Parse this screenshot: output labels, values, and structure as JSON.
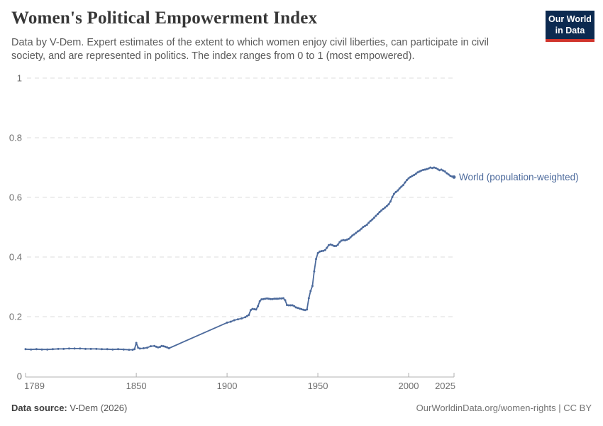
{
  "header": {
    "title": "Women's Political Empowerment Index",
    "subtitle": "Data by V-Dem. Expert estimates of the extent to which women enjoy civil liberties, can participate in civil society, and are represented in politics. The index ranges from 0 to 1 (most empowered).",
    "logo": {
      "line1": "Our World",
      "line2": "in Data",
      "bg_color": "#0c2a50",
      "accent_color": "#d0342c"
    }
  },
  "chart_data": {
    "type": "line",
    "title": "Women's Political Empowerment Index",
    "xlabel": "",
    "ylabel": "",
    "xlim": [
      1789,
      2025
    ],
    "ylim": [
      0,
      1
    ],
    "x_ticks": [
      1789,
      1850,
      1900,
      1950,
      2000,
      2025
    ],
    "y_ticks": [
      0,
      0.2,
      0.4,
      0.6,
      0.8,
      1
    ],
    "grid": "horizontal dashed",
    "legend_position": "end-of-line label",
    "grid_color": "#dddddd",
    "axis_color": "#b0b0b0",
    "tick_label_color": "#6e6e6e",
    "series": [
      {
        "name": "World (population-weighted)",
        "color": "#4c6a9c",
        "points": [
          [
            1789,
            0.091
          ],
          [
            1792,
            0.09
          ],
          [
            1795,
            0.091
          ],
          [
            1798,
            0.09
          ],
          [
            1801,
            0.09
          ],
          [
            1804,
            0.091
          ],
          [
            1807,
            0.092
          ],
          [
            1810,
            0.092
          ],
          [
            1813,
            0.093
          ],
          [
            1816,
            0.093
          ],
          [
            1819,
            0.093
          ],
          [
            1822,
            0.092
          ],
          [
            1825,
            0.092
          ],
          [
            1828,
            0.092
          ],
          [
            1831,
            0.091
          ],
          [
            1834,
            0.091
          ],
          [
            1837,
            0.09
          ],
          [
            1840,
            0.091
          ],
          [
            1843,
            0.09
          ],
          [
            1846,
            0.089
          ],
          [
            1848,
            0.089
          ],
          [
            1849,
            0.091
          ],
          [
            1850,
            0.112
          ],
          [
            1851,
            0.096
          ],
          [
            1852,
            0.093
          ],
          [
            1854,
            0.094
          ],
          [
            1856,
            0.096
          ],
          [
            1858,
            0.101
          ],
          [
            1860,
            0.102
          ],
          [
            1861,
            0.099
          ],
          [
            1862,
            0.097
          ],
          [
            1863,
            0.098
          ],
          [
            1864,
            0.102
          ],
          [
            1865,
            0.101
          ],
          [
            1866,
            0.099
          ],
          [
            1867,
            0.097
          ],
          [
            1868,
            0.094
          ],
          [
            1900,
            0.18
          ],
          [
            1902,
            0.183
          ],
          [
            1904,
            0.188
          ],
          [
            1906,
            0.191
          ],
          [
            1908,
            0.194
          ],
          [
            1910,
            0.198
          ],
          [
            1911,
            0.202
          ],
          [
            1912,
            0.206
          ],
          [
            1913,
            0.222
          ],
          [
            1914,
            0.226
          ],
          [
            1915,
            0.225
          ],
          [
            1916,
            0.224
          ],
          [
            1917,
            0.235
          ],
          [
            1918,
            0.252
          ],
          [
            1919,
            0.258
          ],
          [
            1920,
            0.259
          ],
          [
            1921,
            0.26
          ],
          [
            1922,
            0.261
          ],
          [
            1923,
            0.26
          ],
          [
            1924,
            0.259
          ],
          [
            1925,
            0.259
          ],
          [
            1926,
            0.26
          ],
          [
            1927,
            0.26
          ],
          [
            1928,
            0.26
          ],
          [
            1929,
            0.261
          ],
          [
            1930,
            0.261
          ],
          [
            1931,
            0.262
          ],
          [
            1932,
            0.255
          ],
          [
            1933,
            0.239
          ],
          [
            1934,
            0.238
          ],
          [
            1935,
            0.238
          ],
          [
            1936,
            0.238
          ],
          [
            1937,
            0.235
          ],
          [
            1938,
            0.231
          ],
          [
            1939,
            0.229
          ],
          [
            1940,
            0.227
          ],
          [
            1941,
            0.225
          ],
          [
            1942,
            0.223
          ],
          [
            1943,
            0.222
          ],
          [
            1944,
            0.224
          ],
          [
            1945,
            0.262
          ],
          [
            1946,
            0.286
          ],
          [
            1947,
            0.303
          ],
          [
            1948,
            0.352
          ],
          [
            1949,
            0.393
          ],
          [
            1950,
            0.413
          ],
          [
            1951,
            0.418
          ],
          [
            1952,
            0.42
          ],
          [
            1953,
            0.421
          ],
          [
            1954,
            0.423
          ],
          [
            1955,
            0.431
          ],
          [
            1956,
            0.44
          ],
          [
            1957,
            0.442
          ],
          [
            1958,
            0.44
          ],
          [
            1959,
            0.437
          ],
          [
            1960,
            0.437
          ],
          [
            1961,
            0.441
          ],
          [
            1962,
            0.45
          ],
          [
            1963,
            0.455
          ],
          [
            1964,
            0.457
          ],
          [
            1965,
            0.456
          ],
          [
            1966,
            0.458
          ],
          [
            1967,
            0.461
          ],
          [
            1968,
            0.466
          ],
          [
            1969,
            0.472
          ],
          [
            1970,
            0.476
          ],
          [
            1971,
            0.481
          ],
          [
            1972,
            0.486
          ],
          [
            1973,
            0.489
          ],
          [
            1974,
            0.495
          ],
          [
            1975,
            0.501
          ],
          [
            1976,
            0.504
          ],
          [
            1977,
            0.508
          ],
          [
            1978,
            0.515
          ],
          [
            1979,
            0.521
          ],
          [
            1980,
            0.526
          ],
          [
            1981,
            0.532
          ],
          [
            1982,
            0.538
          ],
          [
            1983,
            0.544
          ],
          [
            1984,
            0.551
          ],
          [
            1985,
            0.556
          ],
          [
            1986,
            0.561
          ],
          [
            1987,
            0.566
          ],
          [
            1988,
            0.571
          ],
          [
            1989,
            0.577
          ],
          [
            1990,
            0.586
          ],
          [
            1991,
            0.601
          ],
          [
            1992,
            0.612
          ],
          [
            1993,
            0.618
          ],
          [
            1994,
            0.623
          ],
          [
            1995,
            0.63
          ],
          [
            1996,
            0.636
          ],
          [
            1997,
            0.641
          ],
          [
            1998,
            0.65
          ],
          [
            1999,
            0.658
          ],
          [
            2000,
            0.664
          ],
          [
            2001,
            0.668
          ],
          [
            2002,
            0.672
          ],
          [
            2003,
            0.675
          ],
          [
            2004,
            0.679
          ],
          [
            2005,
            0.684
          ],
          [
            2006,
            0.687
          ],
          [
            2007,
            0.69
          ],
          [
            2008,
            0.692
          ],
          [
            2009,
            0.693
          ],
          [
            2010,
            0.695
          ],
          [
            2011,
            0.697
          ],
          [
            2012,
            0.7
          ],
          [
            2013,
            0.698
          ],
          [
            2014,
            0.7
          ],
          [
            2015,
            0.698
          ],
          [
            2016,
            0.695
          ],
          [
            2017,
            0.691
          ],
          [
            2018,
            0.693
          ],
          [
            2019,
            0.69
          ],
          [
            2020,
            0.687
          ],
          [
            2021,
            0.681
          ],
          [
            2022,
            0.677
          ],
          [
            2023,
            0.672
          ],
          [
            2024,
            0.67
          ],
          [
            2025,
            0.668
          ]
        ]
      }
    ]
  },
  "footer": {
    "source_label": "Data source:",
    "source_value": " V-Dem (2026)",
    "link": "OurWorldinData.org/women-rights | CC BY"
  }
}
